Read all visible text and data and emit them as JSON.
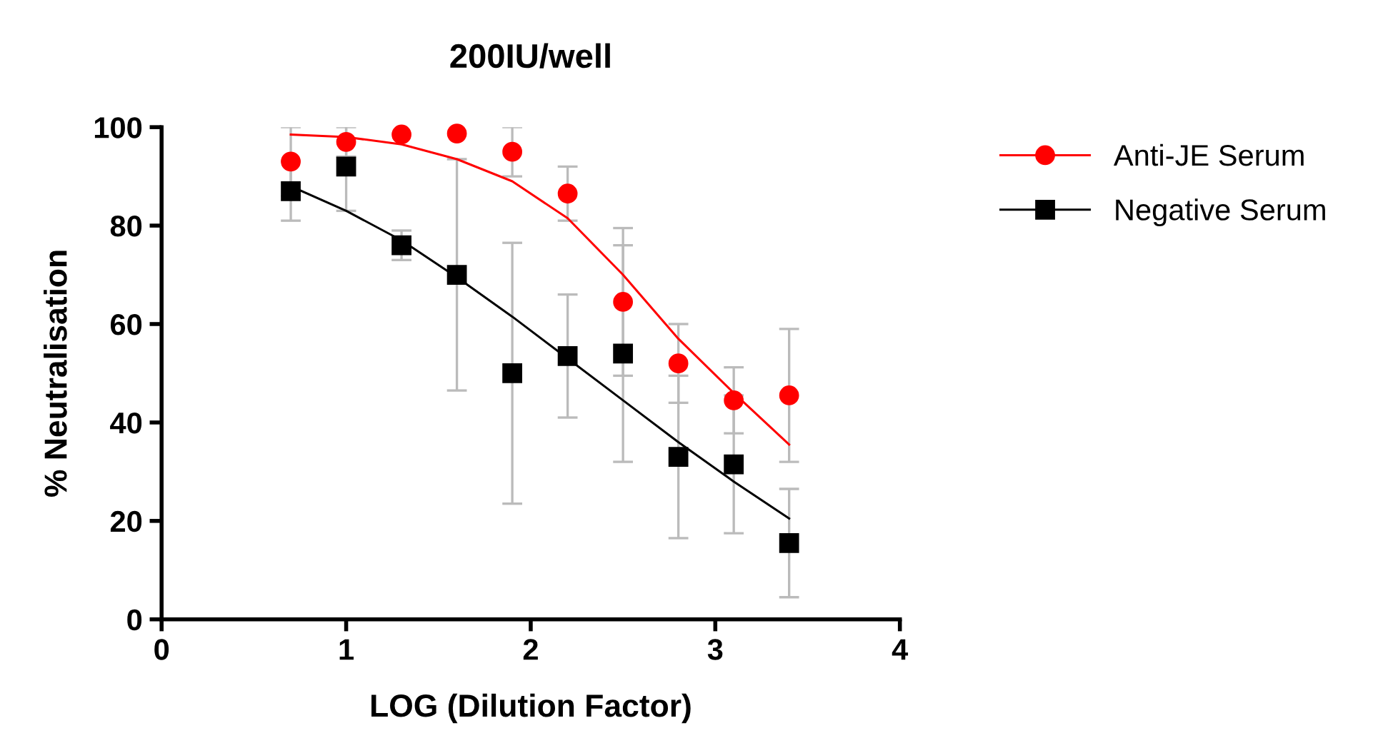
{
  "chart_data": {
    "type": "scatter",
    "title": "200IU/well",
    "xlabel": "LOG (Dilution Factor)",
    "ylabel": "% Neutralisation",
    "xlim": [
      0,
      4
    ],
    "xticks": [
      0,
      1,
      2,
      3,
      4
    ],
    "ylim": [
      0,
      100
    ],
    "yticks": [
      0,
      20,
      40,
      60,
      80,
      100
    ],
    "grid": false,
    "legend": "top right",
    "series": [
      {
        "name": "Anti-JE Serum",
        "color": "#ff0000",
        "marker": "circle",
        "x": [
          0.7,
          1.0,
          1.3,
          1.6,
          1.9,
          2.2,
          2.5,
          2.8,
          3.1,
          3.4
        ],
        "values": [
          93,
          97,
          98.5,
          98.7,
          95,
          86.5,
          64.5,
          52,
          44.5,
          45.5
        ],
        "errors": [
          7,
          3,
          null,
          null,
          5,
          5.5,
          15,
          8,
          6.7,
          13.5
        ]
      },
      {
        "name": "Negative Serum",
        "color": "#000000",
        "marker": "square",
        "x": [
          0.7,
          1.0,
          1.3,
          1.6,
          1.9,
          2.2,
          2.5,
          2.8,
          3.1,
          3.4
        ],
        "values": [
          87,
          92,
          76,
          70,
          50,
          53.5,
          54,
          33,
          31.5,
          15.5
        ],
        "errors": [
          6,
          9,
          3,
          23.5,
          26.5,
          12.5,
          22,
          16.5,
          14,
          11
        ]
      },
      {
        "type": "line",
        "color": "#ff0000",
        "x": [
          0.7,
          1.0,
          1.3,
          1.6,
          1.9,
          2.2,
          2.5,
          2.8,
          3.1,
          3.4
        ],
        "values": [
          98.5,
          98,
          96.5,
          93.5,
          89,
          81.5,
          70,
          57,
          46,
          35.5
        ]
      },
      {
        "type": "line",
        "color": "#000000",
        "x": [
          0.7,
          1.0,
          1.3,
          1.6,
          1.9,
          2.2,
          2.5,
          2.8,
          3.1,
          3.4
        ],
        "values": [
          88,
          83,
          77,
          69.5,
          61.5,
          53,
          44.5,
          36,
          28,
          20.5
        ]
      }
    ]
  }
}
